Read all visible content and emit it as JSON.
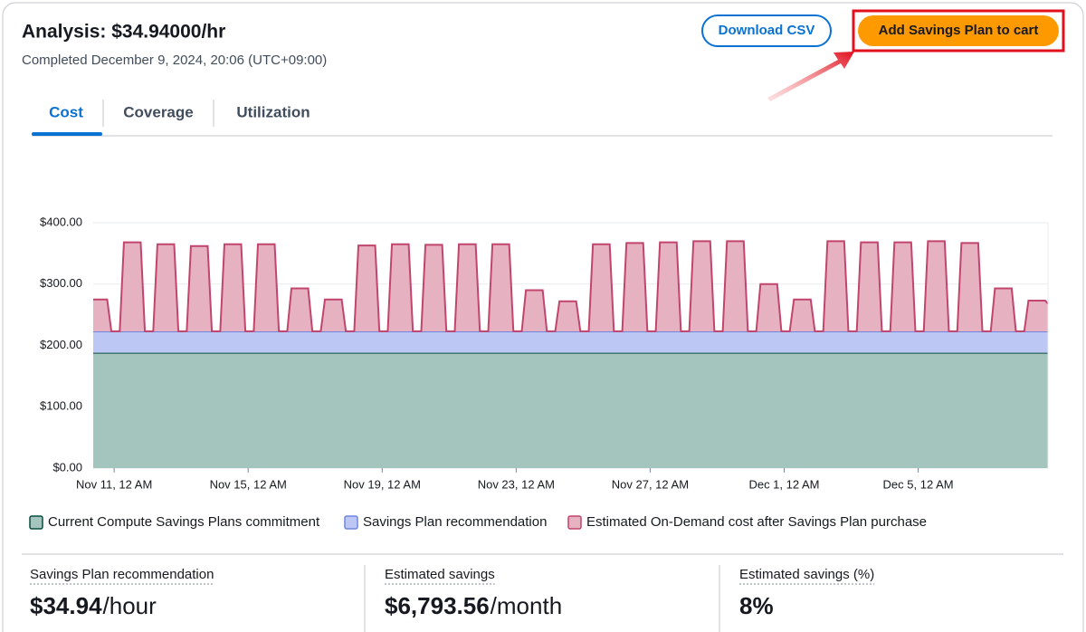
{
  "header": {
    "title": "Analysis: $34.94000/hr",
    "subtitle": "Completed December 9, 2024, 20:06 (UTC+09:00)"
  },
  "buttons": [
    "Download CSV",
    "Add Savings Plan to cart"
  ],
  "tabs": [
    "Cost",
    "Coverage",
    "Utilization"
  ],
  "chart_data": {
    "type": "area",
    "xlim": [
      -15,
      669
    ],
    "xticks": [
      {
        "value": 0,
        "label": "Nov 11, 12 AM"
      },
      {
        "value": 96,
        "label": "Nov 15, 12 AM"
      },
      {
        "value": 192,
        "label": "Nov 19, 12 AM"
      },
      {
        "value": 288,
        "label": "Nov 23, 12 AM"
      },
      {
        "value": 384,
        "label": "Nov 27, 12 AM"
      },
      {
        "value": 480,
        "label": "Dec 1, 12 AM"
      },
      {
        "value": 576,
        "label": "Dec 5, 12 AM"
      }
    ],
    "ylim": [
      0,
      400
    ],
    "yticks": [
      {
        "value": 0,
        "label": "$0.00"
      },
      {
        "value": 100,
        "label": "$100.00"
      },
      {
        "value": 200,
        "label": "$200.00"
      },
      {
        "value": 300,
        "label": "$300.00"
      },
      {
        "value": 400,
        "label": "$400.00"
      }
    ],
    "grid": true,
    "series": [
      {
        "name": "Current Compute Savings Plans commitment",
        "color": "#a3c5bd",
        "line": "#0b4d3e",
        "x": [
          -15,
          669
        ],
        "values": [
          188,
          188
        ]
      },
      {
        "name": "Savings Plan recommendation",
        "color": "#bcc8f3",
        "line": "#6f86e0",
        "stacked": true,
        "x": [
          -15,
          669
        ],
        "values": [
          34.94,
          34.94
        ]
      },
      {
        "name": "Estimated On-Demand cost after Savings Plan purchase",
        "color": "#e6b1c0",
        "line": "#c1456c",
        "x": [
          -15,
          -5,
          -2,
          4,
          7,
          19,
          22,
          28,
          31,
          43,
          46,
          52,
          55,
          67,
          70,
          76,
          79,
          91,
          94,
          100,
          103,
          115,
          118,
          124,
          127,
          139,
          142,
          148,
          151,
          163,
          166,
          172,
          175,
          187,
          190,
          196,
          199,
          211,
          214,
          220,
          223,
          235,
          238,
          244,
          247,
          259,
          262,
          268,
          271,
          283,
          286,
          292,
          295,
          307,
          310,
          316,
          319,
          331,
          334,
          340,
          343,
          355,
          358,
          364,
          367,
          379,
          382,
          388,
          391,
          403,
          406,
          412,
          415,
          427,
          430,
          436,
          439,
          451,
          454,
          460,
          463,
          475,
          478,
          484,
          487,
          499,
          502,
          508,
          511,
          523,
          526,
          532,
          535,
          547,
          550,
          556,
          559,
          571,
          574,
          580,
          583,
          595,
          598,
          604,
          607,
          619,
          622,
          628,
          631,
          643,
          646,
          652,
          655,
          667,
          669
        ],
        "values": [
          275,
          275,
          223,
          223,
          368,
          368,
          223,
          223,
          365,
          365,
          223,
          223,
          362,
          362,
          223,
          223,
          365,
          365,
          223,
          223,
          365,
          365,
          223,
          223,
          293,
          293,
          223,
          223,
          275,
          275,
          223,
          223,
          363,
          363,
          223,
          223,
          365,
          365,
          223,
          223,
          364,
          364,
          223,
          223,
          365,
          365,
          223,
          223,
          365,
          365,
          223,
          223,
          290,
          290,
          223,
          223,
          272,
          272,
          223,
          223,
          365,
          365,
          223,
          223,
          367,
          367,
          223,
          223,
          368,
          368,
          223,
          223,
          370,
          370,
          223,
          223,
          370,
          370,
          223,
          223,
          300,
          300,
          223,
          223,
          275,
          275,
          223,
          223,
          370,
          370,
          223,
          223,
          368,
          368,
          223,
          223,
          368,
          368,
          223,
          223,
          370,
          370,
          223,
          223,
          367,
          367,
          223,
          223,
          293,
          293,
          223,
          223,
          273,
          273,
          268
        ]
      }
    ]
  },
  "summary": [
    {
      "label": "Savings Plan recommendation",
      "value": "$34.94",
      "unit": "/hour"
    },
    {
      "label": "Estimated savings",
      "value": "$6,793.56",
      "unit": "/month"
    },
    {
      "label": "Estimated savings (%)",
      "value": "8%"
    }
  ]
}
